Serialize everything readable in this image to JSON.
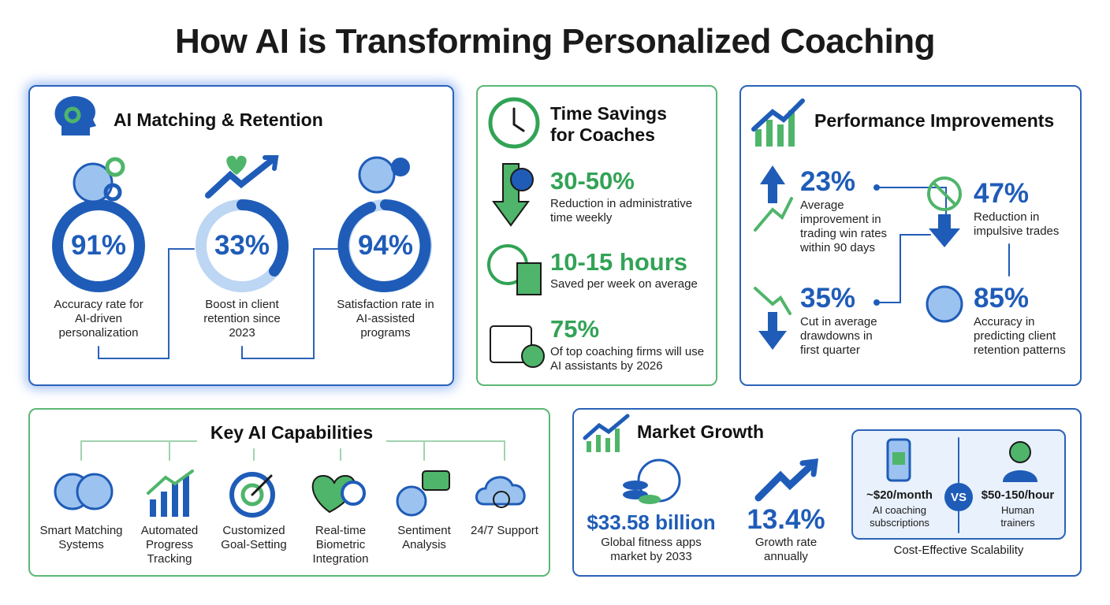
{
  "title": "How AI is Transforming Personalized Coaching",
  "matching": {
    "title": "AI Matching & Retention",
    "stats": [
      {
        "value": "91%",
        "label": "Accuracy rate for AI-driven personalization"
      },
      {
        "value": "33%",
        "label": "Boost in client retention since 2023"
      },
      {
        "value": "94%",
        "label": "Satisfaction rate in AI-assisted programs"
      }
    ]
  },
  "time_savings": {
    "title": "Time Savings for Coaches",
    "stats": [
      {
        "value": "30-50%",
        "label": "Reduction in administrative time weekly"
      },
      {
        "value": "10-15 hours",
        "label": "Saved per week on average"
      },
      {
        "value": "75%",
        "label": "Of top coaching firms will use AI assistants by 2026"
      }
    ]
  },
  "performance": {
    "title": "Performance Improvements",
    "stats": [
      {
        "value": "23%",
        "label": "Average improvement in trading win rates within 90 days"
      },
      {
        "value": "47%",
        "label": "Reduction in impulsive trades"
      },
      {
        "value": "35%",
        "label": "Cut in average drawdowns in first quarter"
      },
      {
        "value": "85%",
        "label": "Accuracy in predicting client retention patterns"
      }
    ]
  },
  "capabilities": {
    "title": "Key AI Capabilities",
    "items": [
      "Smart Matching Systems",
      "Automated Progress Tracking",
      "Customized Goal-Setting",
      "Real-time Biometric Integration",
      "Sentiment Analysis",
      "24/7 Support"
    ]
  },
  "market": {
    "title": "Market Growth",
    "stats": [
      {
        "value": "$33.58 billion",
        "label": "Global fitness apps market by 2033"
      },
      {
        "value": "13.4%",
        "label": "Growth rate annually"
      }
    ],
    "comparison": {
      "left": {
        "value": "~$20/month",
        "label": "AI coaching subscriptions"
      },
      "vs": "VS",
      "right": {
        "value": "$50-150/hour",
        "label": "Human trainers"
      },
      "caption": "Cost-Effective Scalability"
    }
  }
}
